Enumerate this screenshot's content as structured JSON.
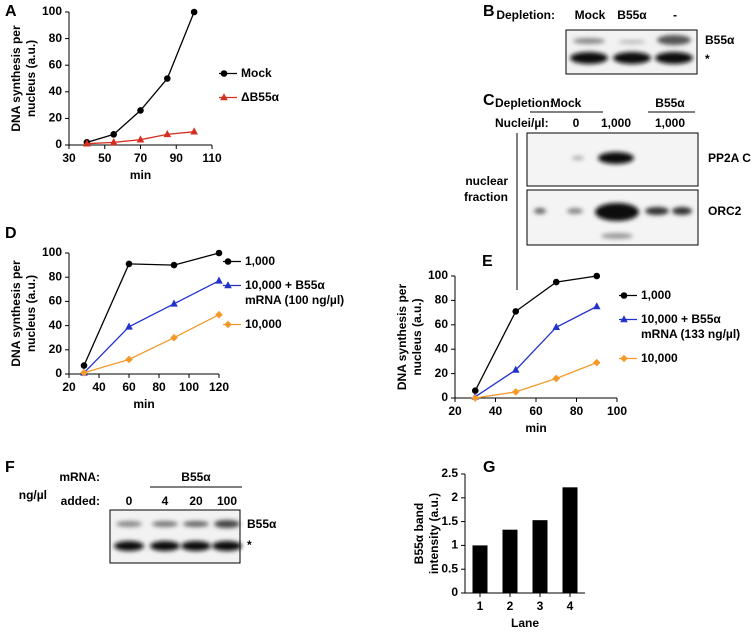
{
  "chart_data": [
    {
      "type": "line",
      "label": "A",
      "ylabel": [
        "DNA synthesis per",
        "nucleus (a.u.)"
      ],
      "xlabel": "min",
      "x": [
        40,
        55,
        70,
        85,
        100
      ],
      "series": [
        {
          "name": "Mock",
          "color": "#000000",
          "marker": "circle",
          "values": [
            2,
            8,
            26,
            50,
            100
          ]
        },
        {
          "name": "ΔB55α",
          "color": "#d62f1f",
          "marker": "triangle",
          "values": [
            1,
            2,
            4,
            8,
            10
          ]
        }
      ],
      "xlim": [
        30,
        110
      ],
      "xticks": [
        30,
        50,
        70,
        90,
        110
      ],
      "ylim": [
        0,
        100
      ],
      "yticks": [
        0,
        20,
        40,
        60,
        80,
        100
      ]
    },
    {
      "type": "line",
      "label": "D",
      "ylabel": [
        "DNA synthesis per",
        "nucleus (a.u.)"
      ],
      "xlabel": "min",
      "x": [
        30,
        60,
        90,
        120
      ],
      "series": [
        {
          "name": "1,000",
          "color": "#000000",
          "marker": "circle",
          "values": [
            7,
            91,
            90,
            100
          ]
        },
        {
          "name": "10,000 + B55α mRNA (100 ng/µl)",
          "color": "#2233cc",
          "marker": "triangle",
          "values": [
            1,
            39,
            58,
            77
          ]
        },
        {
          "name": "10,000",
          "color": "#f39a2b",
          "marker": "diamond",
          "values": [
            1,
            12,
            30,
            49
          ]
        }
      ],
      "xlim": [
        20,
        120
      ],
      "xticks": [
        20,
        40,
        60,
        80,
        100,
        120
      ],
      "ylim": [
        0,
        100
      ],
      "yticks": [
        0,
        20,
        40,
        60,
        80,
        100
      ]
    },
    {
      "type": "line",
      "label": "E",
      "ylabel": [
        "DNA synthesis per",
        "nucleus (a.u.)"
      ],
      "xlabel": "min",
      "x": [
        30,
        50,
        70,
        90
      ],
      "series": [
        {
          "name": "1,000",
          "color": "#000000",
          "marker": "circle",
          "values": [
            6,
            71,
            95,
            100
          ]
        },
        {
          "name": "10,000 + B55α mRNA (133 ng/µl)",
          "color": "#2233cc",
          "marker": "triangle",
          "values": [
            1,
            23,
            58,
            75
          ]
        },
        {
          "name": "10,000",
          "color": "#f39a2b",
          "marker": "diamond",
          "values": [
            0,
            5,
            16,
            29
          ]
        }
      ],
      "xlim": [
        20,
        100
      ],
      "xticks": [
        20,
        40,
        60,
        80,
        100
      ],
      "ylim": [
        0,
        100
      ],
      "yticks": [
        0,
        20,
        40,
        60,
        80,
        100
      ]
    },
    {
      "type": "bar",
      "label": "G",
      "ylabel": [
        "B55α band",
        "intensity (a.u.)"
      ],
      "xlabel": "Lane",
      "categories": [
        "1",
        "2",
        "3",
        "4"
      ],
      "values": [
        1,
        1.33,
        1.53,
        2.22
      ],
      "color": "#000000",
      "ylim": [
        0,
        2.5
      ],
      "yticks": [
        0,
        0.5,
        1,
        1.5,
        2,
        2.5
      ]
    }
  ],
  "blot_b": {
    "label": "B",
    "depletion": "Depletion:",
    "lanes": [
      "Mock",
      "B55α",
      "-"
    ],
    "bands": [
      "B55α",
      "*"
    ]
  },
  "blot_c": {
    "label": "C",
    "depletion": "Depletion:",
    "groups": [
      "Mock",
      "B55α"
    ],
    "nuclei": "Nuclei/µl:",
    "lanes": [
      "0",
      "1,000",
      "1,000"
    ],
    "fraction": [
      "nuclear",
      "fraction"
    ],
    "bands": [
      "PP2A C",
      "ORC2"
    ]
  },
  "blot_f": {
    "label": "F",
    "mrna": "mRNA:",
    "group": "B55α",
    "unit": [
      "ng/µl",
      "added:"
    ],
    "lanes": [
      "0",
      "4",
      "20",
      "100"
    ],
    "bands": [
      "B55α",
      "*"
    ]
  }
}
